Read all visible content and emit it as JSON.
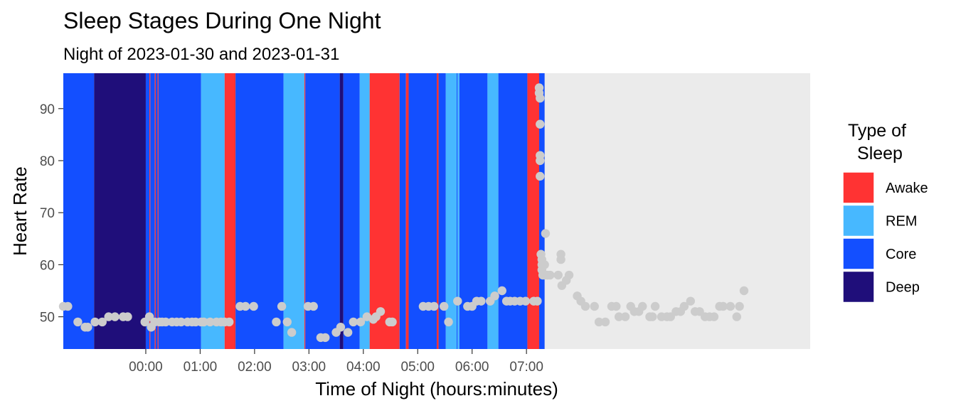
{
  "chart_data": {
    "type": "scatter",
    "title": "Sleep Stages During One Night",
    "subtitle": "Night of 2023-01-30 and 2023-01-31",
    "xlabel": "Time of Night (hours:minutes)",
    "ylabel": "Heart Rate",
    "x_unit": "minutes relative to 00:00",
    "xlim": [
      -91,
      733
    ],
    "ylim": [
      43.8,
      96.8
    ],
    "x_ticks": [
      {
        "value": 0,
        "label": "00:00"
      },
      {
        "value": 60,
        "label": "01:00"
      },
      {
        "value": 120,
        "label": "02:00"
      },
      {
        "value": 180,
        "label": "03:00"
      },
      {
        "value": 240,
        "label": "04:00"
      },
      {
        "value": 300,
        "label": "05:00"
      },
      {
        "value": 360,
        "label": "06:00"
      },
      {
        "value": 420,
        "label": "07:00"
      }
    ],
    "y_ticks": [
      50,
      60,
      70,
      80,
      90
    ],
    "background": "#ebebeb",
    "legend": {
      "title_lines": [
        "Type of",
        "Sleep"
      ],
      "position": "right",
      "entries": [
        {
          "label": "Awake",
          "color": "#ff3333"
        },
        {
          "label": "REM",
          "color": "#47b8ff"
        },
        {
          "label": "Core",
          "color": "#134fff"
        },
        {
          "label": "Deep",
          "color": "#1f0e7a"
        }
      ]
    },
    "stage_colors": {
      "Awake": "#ff3333",
      "REM": "#47b8ff",
      "Core": "#134fff",
      "Deep": "#1f0e7a"
    },
    "sleep_stages": [
      {
        "stage": "Core",
        "start": -91,
        "end": -57
      },
      {
        "stage": "Deep",
        "start": -57,
        "end": 0
      },
      {
        "stage": "Core",
        "start": 0,
        "end": 4
      },
      {
        "stage": "Awake",
        "start": 4,
        "end": 5
      },
      {
        "stage": "Core",
        "start": 5,
        "end": 10
      },
      {
        "stage": "Awake",
        "start": 10,
        "end": 11
      },
      {
        "stage": "Core",
        "start": 11,
        "end": 13
      },
      {
        "stage": "Awake",
        "start": 13,
        "end": 14
      },
      {
        "stage": "Core",
        "start": 14,
        "end": 61
      },
      {
        "stage": "REM",
        "start": 61,
        "end": 87
      },
      {
        "stage": "Awake",
        "start": 87,
        "end": 99
      },
      {
        "stage": "Core",
        "start": 99,
        "end": 152
      },
      {
        "stage": "REM",
        "start": 152,
        "end": 175
      },
      {
        "stage": "Awake",
        "start": 175,
        "end": 176
      },
      {
        "stage": "Core",
        "start": 176,
        "end": 214
      },
      {
        "stage": "Deep",
        "start": 214,
        "end": 218
      },
      {
        "stage": "Core",
        "start": 218,
        "end": 236
      },
      {
        "stage": "REM",
        "start": 236,
        "end": 247
      },
      {
        "stage": "Awake",
        "start": 247,
        "end": 280
      },
      {
        "stage": "Core",
        "start": 280,
        "end": 287
      },
      {
        "stage": "Awake",
        "start": 287,
        "end": 290
      },
      {
        "stage": "Core",
        "start": 290,
        "end": 321
      },
      {
        "stage": "Awake",
        "start": 321,
        "end": 323
      },
      {
        "stage": "Core",
        "start": 323,
        "end": 331
      },
      {
        "stage": "REM",
        "start": 331,
        "end": 343
      },
      {
        "stage": "Core",
        "start": 343,
        "end": 344
      },
      {
        "stage": "REM",
        "start": 344,
        "end": 346
      },
      {
        "stage": "Core",
        "start": 346,
        "end": 377
      },
      {
        "stage": "REM",
        "start": 377,
        "end": 389
      },
      {
        "stage": "Core",
        "start": 389,
        "end": 421
      },
      {
        "stage": "Awake",
        "start": 421,
        "end": 434
      },
      {
        "stage": "Core",
        "start": 434,
        "end": 440
      }
    ],
    "series": [
      {
        "point_color": "#cccccc",
        "points": [
          [
            -91,
            52
          ],
          [
            -86,
            52
          ],
          [
            -75,
            49
          ],
          [
            -67,
            48
          ],
          [
            -64,
            48
          ],
          [
            -56,
            49
          ],
          [
            -48,
            49
          ],
          [
            -41,
            50
          ],
          [
            -34,
            50
          ],
          [
            -25,
            50
          ],
          [
            -20,
            50
          ],
          [
            -1,
            49
          ],
          [
            4,
            50
          ],
          [
            6,
            48
          ],
          [
            10,
            49
          ],
          [
            15,
            49
          ],
          [
            18,
            49
          ],
          [
            22,
            49
          ],
          [
            29,
            49
          ],
          [
            34,
            49
          ],
          [
            39,
            49
          ],
          [
            46,
            49
          ],
          [
            51,
            49
          ],
          [
            55,
            49
          ],
          [
            61,
            49
          ],
          [
            64,
            49
          ],
          [
            71,
            49
          ],
          [
            78,
            49
          ],
          [
            83,
            49
          ],
          [
            87,
            49
          ],
          [
            92,
            49
          ],
          [
            104,
            52
          ],
          [
            110,
            52
          ],
          [
            119,
            52
          ],
          [
            144,
            49
          ],
          [
            150,
            52
          ],
          [
            156,
            49
          ],
          [
            161,
            47
          ],
          [
            179,
            52
          ],
          [
            185,
            52
          ],
          [
            193,
            46
          ],
          [
            198,
            46
          ],
          [
            210,
            47
          ],
          [
            215,
            48
          ],
          [
            223,
            47
          ],
          [
            229,
            49
          ],
          [
            237,
            49
          ],
          [
            244,
            50
          ],
          [
            251,
            49.5
          ],
          [
            254,
            50
          ],
          [
            259,
            51
          ],
          [
            269,
            49
          ],
          [
            272,
            49
          ],
          [
            306,
            52
          ],
          [
            312,
            52
          ],
          [
            318,
            52
          ],
          [
            329,
            52
          ],
          [
            334,
            49
          ],
          [
            344,
            53
          ],
          [
            355,
            52
          ],
          [
            360,
            52
          ],
          [
            365,
            53
          ],
          [
            370,
            53
          ],
          [
            380,
            53
          ],
          [
            385,
            54
          ],
          [
            393,
            55
          ],
          [
            398,
            53
          ],
          [
            402,
            53
          ],
          [
            407,
            53
          ],
          [
            413,
            53
          ],
          [
            419,
            53
          ],
          [
            428,
            53
          ],
          [
            432,
            53
          ],
          [
            434,
            94
          ],
          [
            434,
            93
          ],
          [
            435,
            92
          ],
          [
            435,
            87
          ],
          [
            435,
            81
          ],
          [
            435,
            80
          ],
          [
            435,
            77
          ],
          [
            436,
            62
          ],
          [
            437,
            61
          ],
          [
            437,
            60
          ],
          [
            437,
            59
          ],
          [
            438,
            58
          ],
          [
            440,
            60
          ],
          [
            440,
            58
          ],
          [
            441,
            66
          ],
          [
            443,
            58
          ],
          [
            446,
            58
          ],
          [
            455,
            58
          ],
          [
            458,
            62
          ],
          [
            458,
            61
          ],
          [
            459,
            56
          ],
          [
            464,
            57
          ],
          [
            467,
            58
          ],
          [
            476,
            54
          ],
          [
            480,
            53
          ],
          [
            485,
            52
          ],
          [
            495,
            52
          ],
          [
            500,
            49
          ],
          [
            507,
            49
          ],
          [
            514,
            52
          ],
          [
            519,
            52
          ],
          [
            522,
            50
          ],
          [
            529,
            50
          ],
          [
            535,
            52
          ],
          [
            539,
            51
          ],
          [
            544,
            51
          ],
          [
            548,
            52
          ],
          [
            556,
            50
          ],
          [
            559,
            50
          ],
          [
            562,
            52
          ],
          [
            569,
            50
          ],
          [
            575,
            50
          ],
          [
            579,
            50
          ],
          [
            585,
            51
          ],
          [
            590,
            51
          ],
          [
            594,
            52
          ],
          [
            601,
            53
          ],
          [
            606,
            51
          ],
          [
            611,
            51
          ],
          [
            617,
            50
          ],
          [
            622,
            50
          ],
          [
            627,
            50
          ],
          [
            633,
            52
          ],
          [
            637,
            52
          ],
          [
            645,
            52
          ],
          [
            652,
            50
          ],
          [
            655,
            52
          ],
          [
            660,
            55
          ]
        ]
      }
    ]
  }
}
